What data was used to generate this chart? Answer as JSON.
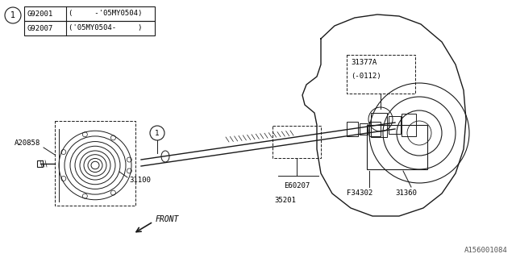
{
  "bg_color": "#ffffff",
  "line_color": "#1a1a1a",
  "watermark": "A156001084",
  "legend_rows": [
    {
      "code": "G92001",
      "desc": "(     -'05MY0504)"
    },
    {
      "code": "G92007",
      "desc": "('05MY0504-     )"
    }
  ],
  "figsize": [
    6.4,
    3.2
  ],
  "dpi": 100
}
